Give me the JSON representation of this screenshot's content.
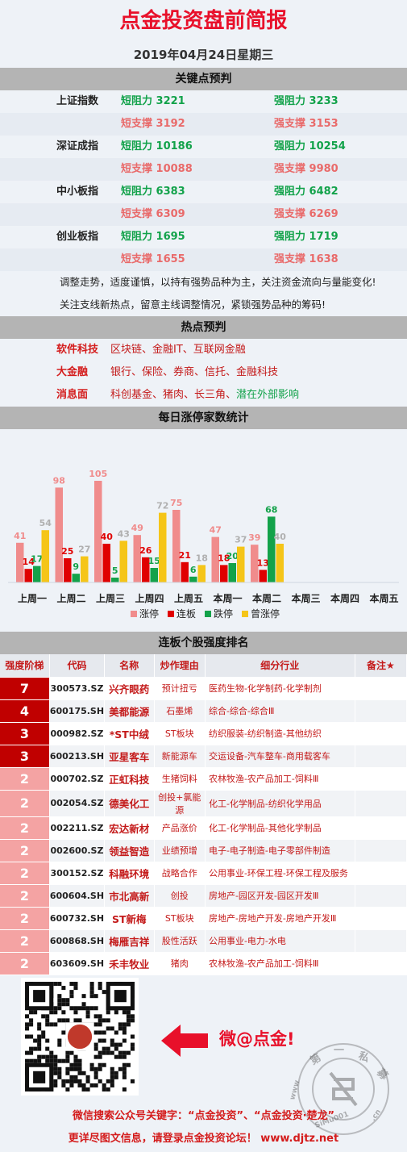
{
  "header": {
    "title": "点金投资盘前简报",
    "date": "2019年04月24日星期三"
  },
  "keypoints": {
    "section_title": "关键点预判",
    "indices": [
      {
        "name": "上证指数",
        "short_res_label": "短阻力",
        "short_res": "3221",
        "strong_res_label": "强阻力",
        "strong_res": "3233",
        "short_sup_label": "短支撑",
        "short_sup": "3192",
        "strong_sup_label": "强支撑",
        "strong_sup": "3153"
      },
      {
        "name": "深证成指",
        "short_res_label": "短阻力",
        "short_res": "10186",
        "strong_res_label": "强阻力",
        "strong_res": "10254",
        "short_sup_label": "短支撑",
        "short_sup": "10088",
        "strong_sup_label": "强支撑",
        "strong_sup": "9980"
      },
      {
        "name": "中小板指",
        "short_res_label": "短阻力",
        "short_res": "6383",
        "strong_res_label": "强阻力",
        "strong_res": "6482",
        "short_sup_label": "短支撑",
        "short_sup": "6309",
        "strong_sup_label": "强支撑",
        "strong_sup": "6269"
      },
      {
        "name": "创业板指",
        "short_res_label": "短阻力",
        "short_res": "1695",
        "strong_res_label": "强阻力",
        "strong_res": "1719",
        "short_sup_label": "短支撑",
        "short_sup": "1655",
        "strong_sup_label": "强支撑",
        "strong_sup": "1638"
      }
    ],
    "note1": "调整走势，适度谨慎，以持有强势品种为主，关注资金流向与量能变化!",
    "note2": "关注支线新热点，留意主线调整情况，紧锁强势品种的筹码!"
  },
  "hotspots": {
    "section_title": "热点预判",
    "items": [
      {
        "key": "软件科技",
        "value": "区块链、金融IT、互联网金融",
        "extra": ""
      },
      {
        "key": "大金融",
        "value": "银行、保险、券商、信托、金融科技",
        "extra": ""
      },
      {
        "key": "消息面",
        "value": "科创基金、猪肉、长三角、",
        "extra": "潜在外部影响"
      }
    ]
  },
  "stats": {
    "section_title": "每日涨停家数统计"
  },
  "chart_data": {
    "type": "bar",
    "categories": [
      "上周一",
      "上周二",
      "上周三",
      "上周四",
      "上周五",
      "本周一",
      "本周二",
      "本周三",
      "本周四",
      "本周五"
    ],
    "series": [
      {
        "name": "涨停",
        "color": "#f08c8c",
        "values": [
          41,
          98,
          105,
          49,
          75,
          47,
          39,
          null,
          null,
          null
        ]
      },
      {
        "name": "连板",
        "color": "#e00000",
        "values": [
          14,
          25,
          40,
          26,
          21,
          18,
          13,
          null,
          null,
          null
        ]
      },
      {
        "name": "跌停",
        "color": "#13a24a",
        "values": [
          17,
          9,
          5,
          15,
          6,
          20,
          68,
          null,
          null,
          null
        ]
      },
      {
        "name": "曾涨停",
        "color": "#f5c518",
        "values": [
          54,
          27,
          43,
          72,
          18,
          37,
          40,
          null,
          null,
          null
        ]
      }
    ],
    "title": "每日涨停家数统计",
    "ylim": [
      0,
      110
    ],
    "legend": "bottom"
  },
  "ranking": {
    "section_title": "连板个股强度排名",
    "columns": [
      "强度阶梯",
      "代码",
      "名称",
      "炒作理由",
      "细分行业",
      "备注★"
    ],
    "rows": [
      {
        "level": "7",
        "code": "300573.SZ",
        "name": "兴齐眼药",
        "reason": "预计扭亏",
        "industry": "医药生物-化学制药-化学制剂",
        "note": ""
      },
      {
        "level": "4",
        "code": "600175.SH",
        "name": "美都能源",
        "reason": "石墨烯",
        "industry": "综合-综合-综合Ⅲ",
        "note": ""
      },
      {
        "level": "3",
        "code": "000982.SZ",
        "name": "*ST中绒",
        "reason": "ST板块",
        "industry": "纺织服装-纺织制造-其他纺织",
        "note": ""
      },
      {
        "level": "3",
        "code": "600213.SH",
        "name": "亚星客车",
        "reason": "新能源车",
        "industry": "交运设备-汽车整车-商用载客车",
        "note": ""
      },
      {
        "level": "2",
        "code": "000702.SZ",
        "name": "正虹科技",
        "reason": "生猪饲料",
        "industry": "农林牧渔-农产品加工-饲料Ⅲ",
        "note": ""
      },
      {
        "level": "2",
        "code": "002054.SZ",
        "name": "德美化工",
        "reason": "创投+氯能源",
        "industry": "化工-化学制品-纺织化学用品",
        "note": ""
      },
      {
        "level": "2",
        "code": "002211.SZ",
        "name": "宏达新材",
        "reason": "产品涨价",
        "industry": "化工-化学制品-其他化学制品",
        "note": ""
      },
      {
        "level": "2",
        "code": "002600.SZ",
        "name": "领益智造",
        "reason": "业绩预增",
        "industry": "电子-电子制造-电子零部件制造",
        "note": ""
      },
      {
        "level": "2",
        "code": "300152.SZ",
        "name": "科融环境",
        "reason": "战略合作",
        "industry": "公用事业-环保工程-环保工程及服务",
        "note": ""
      },
      {
        "level": "2",
        "code": "600604.SH",
        "name": "市北高新",
        "reason": "创投",
        "industry": "房地产-园区开发-园区开发Ⅲ",
        "note": ""
      },
      {
        "level": "2",
        "code": "600732.SH",
        "name": "ST新梅",
        "reason": "ST板块",
        "industry": "房地产-房地产开发-房地产开发Ⅲ",
        "note": ""
      },
      {
        "level": "2",
        "code": "600868.SH",
        "name": "梅雁吉祥",
        "reason": "股性活跃",
        "industry": "公用事业-电力-水电",
        "note": ""
      },
      {
        "level": "2",
        "code": "603609.SH",
        "name": "禾丰牧业",
        "reason": "猪肉",
        "industry": "农林牧渔-农产品加工-饲料Ⅲ",
        "note": ""
      }
    ]
  },
  "promo": {
    "weibo": "微@点金!",
    "stamp_text": "第 一 私 募",
    "stamp_url": "www.SiMu001.cn",
    "wechat_line": "微信搜索公众号关键字：“点金投资”、“点金投资·楚龙”",
    "site_line": "更详尽图文信息，请登录点金投资论坛！  www.djtz.net"
  }
}
